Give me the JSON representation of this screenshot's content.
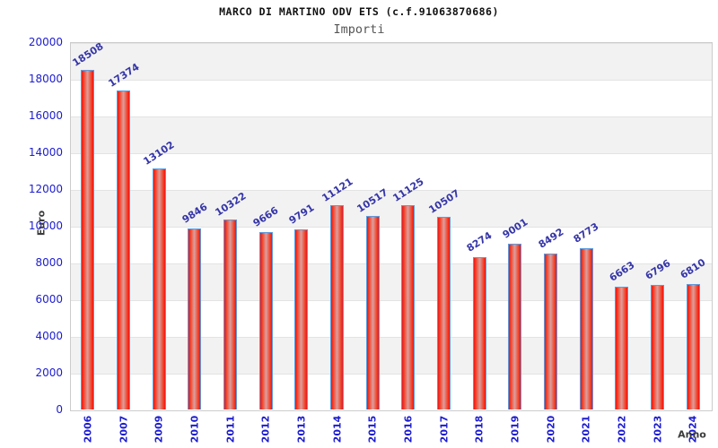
{
  "header": {
    "title": "MARCO DI MARTINO ODV ETS (c.f.91063870686)",
    "subtitle": "Importi"
  },
  "chart_data": {
    "type": "bar",
    "title": "MARCO DI MARTINO ODV ETS (c.f.91063870686)",
    "subtitle": "Importi",
    "xlabel": "Anno",
    "ylabel": "Euro",
    "categories": [
      "2006",
      "2007",
      "2009",
      "2010",
      "2011",
      "2012",
      "2013",
      "2014",
      "2015",
      "2016",
      "2017",
      "2018",
      "2019",
      "2020",
      "2021",
      "2022",
      "2023",
      "2024"
    ],
    "values": [
      18508,
      17374,
      13102,
      9846,
      10322,
      9666,
      9791,
      11121,
      10517,
      11125,
      10507,
      8274,
      9001,
      8492,
      8773,
      6663,
      6796,
      6810
    ],
    "ylim": [
      0,
      20000
    ],
    "ytick_step": 2000,
    "yticks": [
      0,
      2000,
      4000,
      6000,
      8000,
      10000,
      12000,
      14000,
      16000,
      18000,
      20000
    ],
    "grid": "horizontal-bands",
    "legend": "none",
    "colors": {
      "bar_edge": "#ee1414",
      "bar_inner": "#f2452a",
      "bar_center": "#dba0a0",
      "bar_border": "#5b9be0",
      "value_label": "#3535a8",
      "tick_label": "#1c1cd0",
      "band_gray": "#f2f2f2",
      "band_white": "#ffffff",
      "gridline": "#e3e3e3",
      "plot_border": "#cccccc",
      "axis_title": "#3b3b3b"
    }
  }
}
